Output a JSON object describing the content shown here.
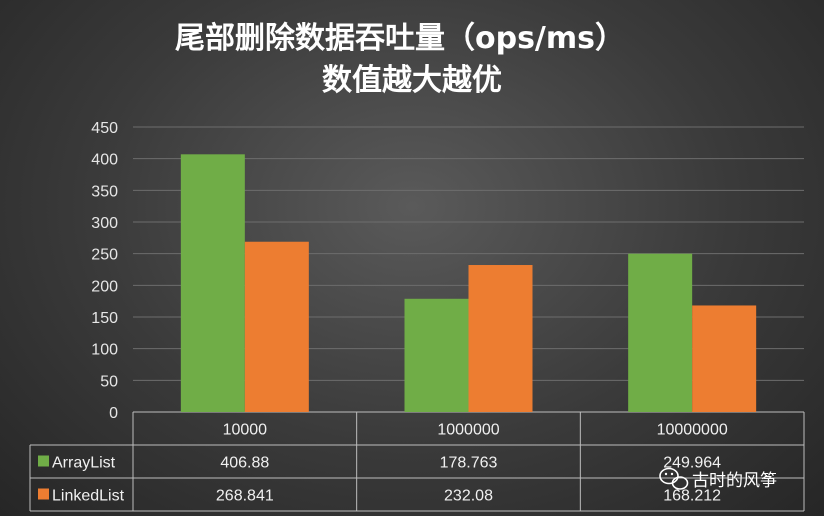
{
  "chart_data": {
    "type": "bar",
    "title": "尾部删除数据吞吐量（ops/ms）",
    "subtitle": "数值越大越优",
    "categories": [
      "10000",
      "1000000",
      "10000000"
    ],
    "series": [
      {
        "name": "ArrayList",
        "values": [
          406.88,
          178.763,
          249.964
        ],
        "labels": [
          "406.88",
          "178.763",
          "249.964"
        ],
        "color": "#70ad47"
      },
      {
        "name": "LinkedList",
        "values": [
          268.841,
          232.08,
          168.212
        ],
        "labels": [
          "268.841",
          "232.08",
          "168.212"
        ],
        "color": "#ed7d31"
      }
    ],
    "ylim": [
      0,
      450
    ],
    "yticks": [
      0,
      50,
      100,
      150,
      200,
      250,
      300,
      350,
      400,
      450
    ],
    "grid": true,
    "legend": "data-table"
  },
  "watermark": {
    "text": "古时的风筝",
    "icon": "wechat-icon"
  }
}
